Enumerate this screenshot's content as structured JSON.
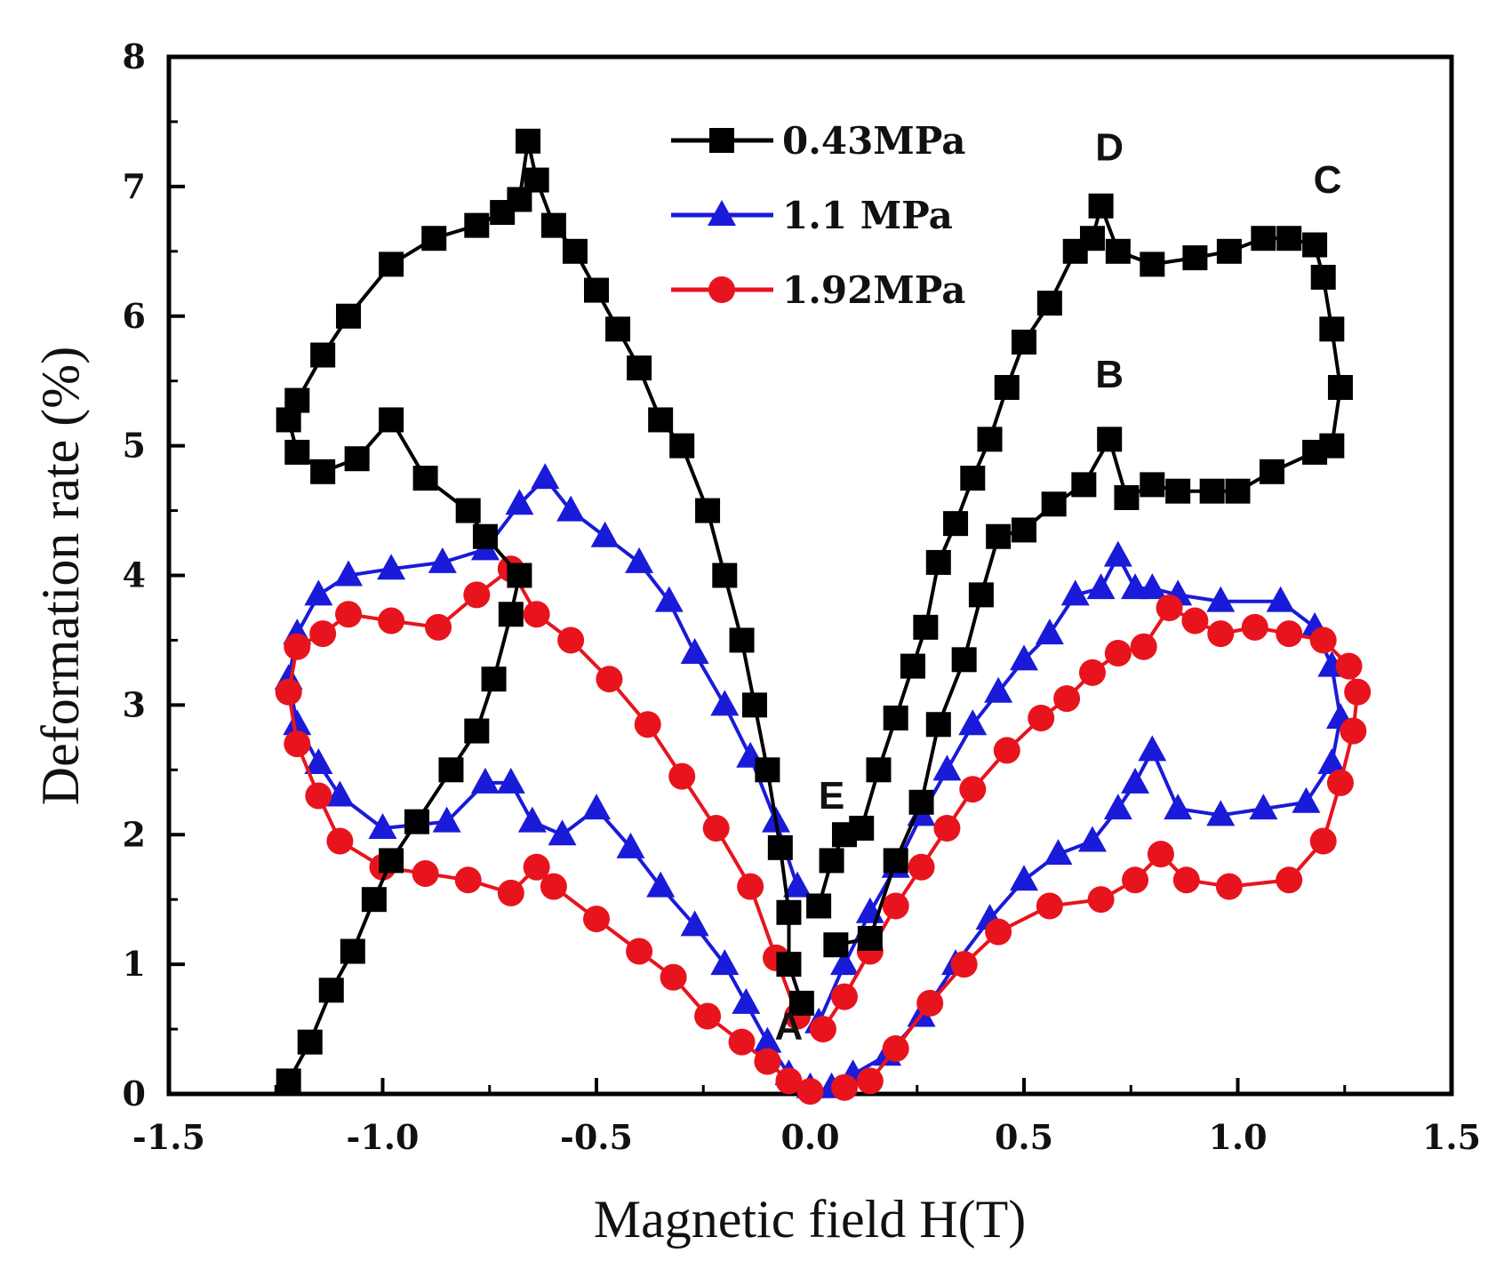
{
  "chart_data": {
    "type": "line",
    "title": "",
    "xlabel": "Magnetic field H(T)",
    "ylabel": "Deformation rate (%)",
    "xlim": [
      -1.5,
      1.5
    ],
    "ylim": [
      0,
      8
    ],
    "xticks": [
      -1.5,
      -1.0,
      -0.5,
      0.0,
      0.5,
      1.0,
      1.5
    ],
    "xtick_labels": [
      "-1.5",
      "-1.0",
      "-0.5",
      "0.0",
      "0.5",
      "1.0",
      "1.5"
    ],
    "yticks": [
      0,
      1,
      2,
      3,
      4,
      5,
      6,
      7,
      8
    ],
    "ytick_labels": [
      "0",
      "1",
      "2",
      "3",
      "4",
      "5",
      "6",
      "7",
      "8"
    ],
    "legend_position": "top-center",
    "series": [
      {
        "name": "0.43MPa",
        "color": "#000000",
        "marker": "square",
        "x": [
          -0.02,
          -0.05,
          -0.05,
          -0.07,
          -0.1,
          -0.13,
          -0.16,
          -0.2,
          -0.24,
          -0.3,
          -0.35,
          -0.4,
          -0.45,
          -0.5,
          -0.55,
          -0.6,
          -0.64,
          -0.66,
          -0.68,
          -0.72,
          -0.78,
          -0.88,
          -0.98,
          -1.08,
          -1.14,
          -1.2,
          -1.22,
          -1.2,
          -1.14,
          -1.06,
          -0.98,
          -0.9,
          -0.8,
          -0.76,
          -0.68,
          -0.7,
          -0.74,
          -0.78,
          -0.84,
          -0.92,
          -0.98,
          -1.02,
          -1.07,
          -1.12,
          -1.17,
          -1.22
        ],
        "y": [
          0.7,
          1.0,
          1.4,
          1.9,
          2.5,
          3.0,
          3.5,
          4.0,
          4.5,
          5.0,
          5.2,
          5.6,
          5.9,
          6.2,
          6.5,
          6.7,
          7.05,
          7.35,
          6.9,
          6.8,
          6.7,
          6.6,
          6.4,
          6.0,
          5.7,
          5.35,
          5.2,
          4.95,
          4.8,
          4.9,
          5.2,
          4.75,
          4.5,
          4.3,
          4.0,
          3.7,
          3.2,
          2.8,
          2.5,
          2.1,
          1.8,
          1.5,
          1.1,
          0.8,
          0.4,
          0.1
        ]
      },
      {
        "name": "1.1 MPa",
        "color": "#1a1ad9",
        "marker": "triangle",
        "x": [
          0.0,
          -0.05,
          -0.1,
          -0.15,
          -0.2,
          -0.27,
          -0.35,
          -0.42,
          -0.5,
          -0.58,
          -0.65,
          -0.7,
          -0.76,
          -0.85,
          -1.0,
          -1.1,
          -1.15,
          -1.2,
          -1.22,
          -1.2,
          -1.15,
          -1.08,
          -0.98,
          -0.86,
          -0.76,
          -0.68,
          -0.62,
          -0.56,
          -0.48,
          -0.4,
          -0.33,
          -0.27,
          -0.2,
          -0.14,
          -0.08,
          -0.03
        ],
        "y": [
          0.05,
          0.15,
          0.4,
          0.7,
          1.0,
          1.3,
          1.6,
          1.9,
          2.2,
          2.0,
          2.1,
          2.4,
          2.4,
          2.1,
          2.05,
          2.3,
          2.55,
          2.85,
          3.2,
          3.55,
          3.85,
          4.0,
          4.05,
          4.1,
          4.2,
          4.55,
          4.75,
          4.5,
          4.3,
          4.1,
          3.8,
          3.4,
          3.0,
          2.6,
          2.1,
          1.6
        ]
      },
      {
        "name": "1.92MPa",
        "color": "#e8141d",
        "marker": "circle",
        "x": [
          0.0,
          -0.05,
          -0.1,
          -0.16,
          -0.24,
          -0.32,
          -0.4,
          -0.5,
          -0.6,
          -0.64,
          -0.7,
          -0.8,
          -0.9,
          -1.0,
          -1.1,
          -1.15,
          -1.2,
          -1.22,
          -1.2,
          -1.14,
          -1.08,
          -0.98,
          -0.87,
          -0.78,
          -0.7,
          -0.64,
          -0.56,
          -0.47,
          -0.38,
          -0.3,
          -0.22,
          -0.14,
          -0.08,
          -0.03
        ],
        "y": [
          0.02,
          0.1,
          0.25,
          0.4,
          0.6,
          0.9,
          1.1,
          1.35,
          1.6,
          1.75,
          1.55,
          1.65,
          1.7,
          1.75,
          1.95,
          2.3,
          2.7,
          3.1,
          3.45,
          3.55,
          3.7,
          3.65,
          3.6,
          3.85,
          4.05,
          3.7,
          3.5,
          3.2,
          2.85,
          2.45,
          2.05,
          1.6,
          1.05,
          0.6
        ]
      }
    ],
    "series_right": [
      {
        "name": "0.43MPa",
        "x": [
          0.02,
          0.05,
          0.08,
          0.12,
          0.16,
          0.2,
          0.24,
          0.27,
          0.3,
          0.34,
          0.38,
          0.42,
          0.46,
          0.5,
          0.56,
          0.62,
          0.66,
          0.68,
          0.72,
          0.8,
          0.9,
          0.98,
          1.06,
          1.12,
          1.18,
          1.2,
          1.22,
          1.24,
          1.22,
          1.18,
          1.08,
          1.0,
          0.94,
          0.86,
          0.8,
          0.74,
          0.7,
          0.64,
          0.57,
          0.5,
          0.44,
          0.4,
          0.36,
          0.3,
          0.26,
          0.2,
          0.14,
          0.06
        ],
        "y": [
          1.45,
          1.8,
          2.0,
          2.05,
          2.5,
          2.9,
          3.3,
          3.6,
          4.1,
          4.4,
          4.75,
          5.05,
          5.45,
          5.8,
          6.1,
          6.5,
          6.6,
          6.85,
          6.5,
          6.4,
          6.45,
          6.5,
          6.6,
          6.6,
          6.55,
          6.3,
          5.9,
          5.45,
          5.0,
          4.95,
          4.8,
          4.65,
          4.65,
          4.65,
          4.7,
          4.6,
          5.05,
          4.7,
          4.55,
          4.35,
          4.3,
          3.85,
          3.35,
          2.85,
          2.25,
          1.8,
          1.2,
          1.15
        ]
      },
      {
        "name": "1.1 MPa",
        "x": [
          0.02,
          0.08,
          0.14,
          0.2,
          0.26,
          0.32,
          0.38,
          0.44,
          0.5,
          0.56,
          0.62,
          0.68,
          0.72,
          0.76,
          0.8,
          0.86,
          0.96,
          1.1,
          1.18,
          1.22,
          1.24,
          1.22,
          1.16,
          1.06,
          0.96,
          0.86,
          0.8,
          0.76,
          0.72,
          0.66,
          0.58,
          0.5,
          0.42,
          0.34,
          0.26,
          0.18,
          0.1,
          0.05
        ],
        "y": [
          0.55,
          1.0,
          1.4,
          1.75,
          2.15,
          2.5,
          2.85,
          3.1,
          3.35,
          3.55,
          3.85,
          3.9,
          4.15,
          3.9,
          3.9,
          3.85,
          3.8,
          3.8,
          3.6,
          3.3,
          2.9,
          2.55,
          2.25,
          2.2,
          2.15,
          2.2,
          2.65,
          2.4,
          2.2,
          1.95,
          1.85,
          1.65,
          1.35,
          1.0,
          0.6,
          0.3,
          0.15,
          0.05
        ]
      },
      {
        "name": "1.92MPa",
        "x": [
          0.03,
          0.08,
          0.14,
          0.2,
          0.26,
          0.32,
          0.38,
          0.46,
          0.54,
          0.6,
          0.66,
          0.72,
          0.78,
          0.84,
          0.9,
          0.96,
          1.04,
          1.12,
          1.2,
          1.26,
          1.28,
          1.27,
          1.24,
          1.2,
          1.12,
          0.98,
          0.88,
          0.82,
          0.76,
          0.68,
          0.56,
          0.44,
          0.36,
          0.28,
          0.2,
          0.14,
          0.08
        ],
        "y": [
          0.5,
          0.75,
          1.1,
          1.45,
          1.75,
          2.05,
          2.35,
          2.65,
          2.9,
          3.05,
          3.25,
          3.4,
          3.45,
          3.75,
          3.65,
          3.55,
          3.6,
          3.55,
          3.5,
          3.3,
          3.1,
          2.8,
          2.4,
          1.95,
          1.65,
          1.6,
          1.65,
          1.85,
          1.65,
          1.5,
          1.45,
          1.25,
          1.0,
          0.7,
          0.35,
          0.1,
          0.05
        ]
      }
    ],
    "annotations": [
      {
        "text": "A",
        "x": -0.05,
        "y": 0.42
      },
      {
        "text": "B",
        "x": 0.7,
        "y": 5.45
      },
      {
        "text": "C",
        "x": 1.21,
        "y": 6.95
      },
      {
        "text": "D",
        "x": 0.7,
        "y": 7.2
      },
      {
        "text": "E",
        "x": 0.05,
        "y": 2.2
      }
    ]
  }
}
